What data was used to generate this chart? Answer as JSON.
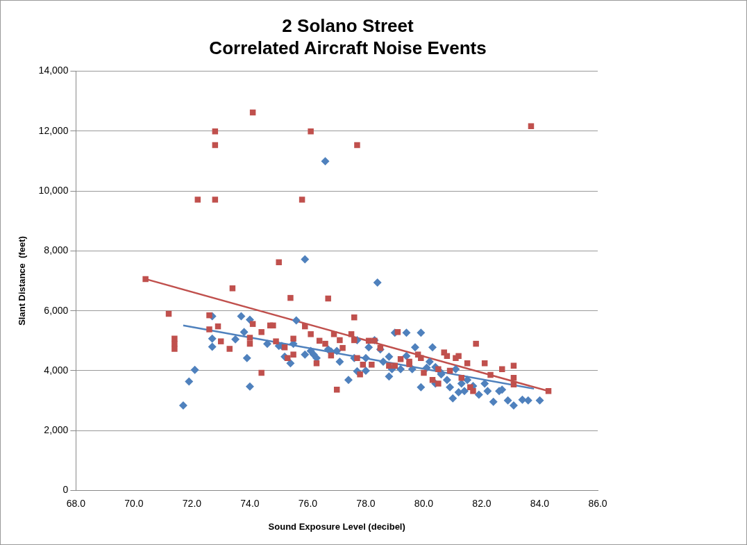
{
  "chart_data": {
    "type": "scatter",
    "title": "2 Solano Street",
    "subtitle": "Correlated Aircraft Noise Events",
    "xlabel": "Sound Exposure Level (decibel)",
    "ylabel": "Slant Distance  (feet)",
    "xlim": [
      68,
      86
    ],
    "xticks": [
      {
        "value": 68,
        "label": "68.0"
      },
      {
        "value": 70,
        "label": "70.0"
      },
      {
        "value": 72,
        "label": "72.0"
      },
      {
        "value": 74,
        "label": "74.0"
      },
      {
        "value": 76,
        "label": "76.0"
      },
      {
        "value": 78,
        "label": "78.0"
      },
      {
        "value": 80,
        "label": "80.0"
      },
      {
        "value": 82,
        "label": "82.0"
      },
      {
        "value": 84,
        "label": "84.0"
      },
      {
        "value": 86,
        "label": "86.0"
      }
    ],
    "ylim": [
      0,
      14000
    ],
    "yticks": [
      0,
      {
        "value": 2000,
        "label": "2,000"
      },
      {
        "value": 4000,
        "label": "4,000"
      },
      {
        "value": 6000,
        "label": "6,000"
      },
      {
        "value": 8000,
        "label": "8,000"
      },
      {
        "value": 10000,
        "label": "10,000"
      },
      {
        "value": 12000,
        "label": "12,000"
      },
      {
        "value": 14000,
        "label": "14,000"
      }
    ],
    "grid": "y",
    "legend": false,
    "series": [
      {
        "marker": "square",
        "color": "#c0504d",
        "x": [
          70.4,
          71.2,
          71.4,
          71.4,
          71.4,
          72.2,
          72.6,
          72.6,
          72.8,
          72.8,
          72.8,
          72.9,
          73.0,
          73.3,
          73.4,
          74.1,
          74.0,
          74.1,
          74.0,
          74.4,
          74.4,
          74.7,
          74.8,
          74.9,
          75.0,
          75.2,
          75.3,
          75.4,
          75.5,
          75.5,
          75.8,
          75.9,
          76.1,
          76.1,
          76.3,
          76.4,
          76.6,
          76.7,
          76.8,
          76.9,
          77.0,
          77.1,
          77.2,
          77.5,
          77.6,
          77.6,
          77.7,
          77.7,
          77.8,
          77.9,
          78.1,
          78.2,
          78.3,
          78.5,
          78.8,
          79.0,
          79.1,
          79.2,
          79.5,
          79.5,
          79.8,
          79.9,
          80.0,
          80.3,
          80.5,
          80.5,
          80.7,
          80.8,
          80.9,
          81.1,
          81.2,
          81.3,
          81.5,
          81.6,
          81.8,
          81.7,
          82.1,
          82.3,
          82.7,
          83.1,
          83.1,
          83.1,
          83.7,
          84.3
        ],
        "values": [
          7060,
          5900,
          5070,
          4900,
          4730,
          9710,
          5850,
          5380,
          11990,
          11530,
          9710,
          5480,
          4980,
          4730,
          6750,
          12620,
          4900,
          5560,
          5100,
          5290,
          3930,
          5510,
          5510,
          4980,
          7620,
          4780,
          4420,
          6430,
          5070,
          4540,
          9710,
          5480,
          11990,
          5220,
          4250,
          5000,
          4900,
          6410,
          4510,
          5220,
          3370,
          5020,
          4760,
          5220,
          5780,
          5020,
          11530,
          4420,
          3880,
          4200,
          5000,
          4200,
          5000,
          4760,
          4170,
          4170,
          5290,
          4390,
          4220,
          4300,
          4540,
          4420,
          3930,
          3690,
          4050,
          3570,
          4610,
          4490,
          4000,
          4420,
          4490,
          3760,
          4250,
          3450,
          4900,
          3320,
          4250,
          3860,
          4050,
          4170,
          3760,
          3540,
          12160,
          3320
        ]
      },
      {
        "marker": "diamond",
        "color": "#4f81bd",
        "x": [
          71.7,
          71.9,
          72.1,
          72.7,
          72.7,
          72.7,
          73.5,
          73.7,
          73.8,
          73.9,
          74.0,
          74.0,
          74.6,
          75.0,
          75.1,
          75.2,
          75.4,
          75.5,
          75.6,
          75.9,
          75.9,
          76.1,
          76.2,
          76.3,
          76.6,
          76.7,
          76.8,
          77.0,
          77.1,
          77.4,
          77.6,
          77.7,
          77.7,
          78.0,
          78.0,
          78.1,
          78.3,
          78.4,
          78.5,
          78.6,
          78.8,
          78.8,
          78.9,
          79.0,
          79.2,
          79.4,
          79.4,
          79.6,
          79.7,
          79.9,
          79.9,
          80.1,
          80.2,
          80.3,
          80.4,
          80.4,
          80.6,
          80.6,
          80.8,
          80.9,
          81.0,
          81.1,
          81.2,
          81.3,
          81.4,
          81.5,
          81.7,
          81.9,
          82.1,
          82.2,
          82.4,
          82.6,
          82.7,
          82.9,
          83.1,
          83.4,
          83.6,
          84.0
        ],
        "values": [
          2840,
          3640,
          4030,
          5820,
          5070,
          4800,
          5050,
          5820,
          5290,
          4420,
          3470,
          5700,
          4900,
          4830,
          4830,
          4470,
          4250,
          4900,
          5680,
          7720,
          4540,
          4660,
          4540,
          4420,
          10990,
          4710,
          4640,
          4660,
          4300,
          3690,
          4420,
          5020,
          3980,
          4000,
          4420,
          4780,
          5020,
          6940,
          4710,
          4300,
          3810,
          4470,
          4050,
          5270,
          4050,
          5270,
          4490,
          4050,
          4780,
          3450,
          5270,
          4100,
          4300,
          4780,
          4120,
          3570,
          3880,
          3930,
          3690,
          3450,
          3080,
          4050,
          3280,
          3570,
          3320,
          3690,
          3490,
          3200,
          3570,
          3320,
          2960,
          3320,
          3370,
          3010,
          2840,
          3030,
          3010,
          3010
        ]
      },
      {
        "type": "line",
        "marker": "none",
        "color": "#c0504d",
        "x": [
          70.4,
          84.3
        ],
        "values": [
          7060,
          3320
        ]
      },
      {
        "type": "line",
        "marker": "none",
        "color": "#4f81bd",
        "x": [
          71.7,
          83.8
        ],
        "values": [
          5510,
          3400
        ]
      }
    ]
  }
}
